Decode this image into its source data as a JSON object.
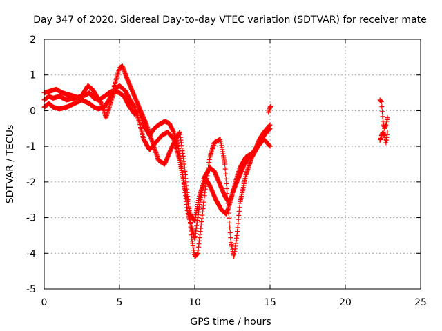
{
  "chart_data": {
    "type": "scatter",
    "title": "Day 347 of 2020, Sidereal Day-to-day VTEC variation (SDTVAR) for receiver mate",
    "xlabel": "GPS time / hours",
    "ylabel": "SDTVAR / TECUs",
    "xlim": [
      0,
      25
    ],
    "ylim": [
      -5,
      2
    ],
    "xticks": [
      0,
      5,
      10,
      15,
      20,
      25
    ],
    "yticks": [
      -5,
      -4,
      -3,
      -2,
      -1,
      0,
      1,
      2
    ],
    "grid": true,
    "marker": "+",
    "series": [
      {
        "name": "SDTVAR",
        "color": "#ff0000",
        "segments": [
          {
            "x": [
              0.0,
              0.3,
              0.6,
              1.0,
              1.5,
              2.0,
              2.5,
              2.8,
              3.0,
              3.3,
              3.6,
              4.0,
              4.3,
              4.6,
              5.0,
              5.3,
              5.6,
              6.0,
              6.3,
              6.6,
              7.0,
              7.3,
              7.6,
              8.0,
              8.3,
              8.6,
              8.9,
              9.2,
              9.5,
              9.8,
              10.0,
              10.3,
              10.6,
              11.0,
              11.3,
              11.6,
              12.0,
              12.3,
              12.6,
              13.0,
              13.3,
              13.6,
              14.0,
              14.3,
              14.6,
              15.0
            ],
            "y": [
              0.3,
              0.4,
              0.35,
              0.4,
              0.3,
              0.35,
              0.4,
              0.45,
              0.5,
              0.35,
              0.3,
              0.4,
              0.5,
              0.55,
              0.5,
              0.4,
              0.15,
              -0.1,
              0.0,
              -0.4,
              -0.7,
              -0.5,
              -0.4,
              -0.3,
              -0.35,
              -0.6,
              -1.0,
              -1.8,
              -2.8,
              -3.3,
              -3.6,
              -2.7,
              -1.9,
              -1.6,
              -1.7,
              -2.0,
              -2.4,
              -2.6,
              -2.2,
              -1.8,
              -1.5,
              -1.3,
              -1.1,
              -0.8,
              -0.6,
              -0.4
            ]
          },
          {
            "x": [
              0.0,
              0.3,
              0.6,
              1.0,
              1.5,
              2.0,
              2.5,
              3.0,
              3.3,
              3.6,
              4.0,
              4.3,
              4.6,
              5.0,
              5.2,
              5.5,
              5.8,
              6.1,
              6.4,
              6.8,
              7.2,
              7.6,
              8.0,
              8.5,
              9.0,
              9.3,
              9.6,
              9.8,
              10.0,
              10.2,
              10.4,
              10.7,
              11.0,
              11.3,
              11.7,
              12.0,
              12.2,
              12.4,
              12.6,
              12.8,
              13.0,
              13.4,
              13.8,
              14.2,
              14.6,
              15.0
            ],
            "y": [
              0.1,
              0.2,
              0.1,
              0.05,
              0.1,
              0.2,
              0.3,
              0.2,
              0.1,
              0.05,
              0.1,
              0.3,
              0.6,
              1.2,
              1.25,
              0.9,
              0.6,
              0.3,
              0.0,
              -0.4,
              -0.9,
              -1.4,
              -1.5,
              -1.0,
              -0.6,
              -1.5,
              -2.7,
              -3.6,
              -4.1,
              -4.0,
              -3.3,
              -2.2,
              -1.3,
              -0.9,
              -0.8,
              -1.5,
              -2.6,
              -3.7,
              -4.1,
              -3.5,
              -2.6,
              -1.8,
              -1.3,
              -1.0,
              -0.8,
              -1.0
            ]
          },
          {
            "x": [
              0.0,
              0.4,
              0.8,
              1.2,
              1.6,
              2.0,
              2.4,
              2.9,
              3.2,
              3.5,
              3.8,
              4.1,
              4.4,
              4.7,
              5.0,
              5.4,
              5.7,
              6.0,
              6.3,
              6.6,
              7.0,
              7.4,
              7.8,
              8.2,
              8.6,
              9.0,
              9.4,
              9.7,
              10.0,
              10.3,
              10.7,
              11.0,
              11.4,
              11.8,
              12.1,
              12.4,
              12.7,
              13.0,
              13.4,
              13.8,
              14.2,
              14.6,
              15.0
            ],
            "y": [
              0.5,
              0.55,
              0.6,
              0.5,
              0.45,
              0.4,
              0.35,
              0.7,
              0.6,
              0.4,
              0.2,
              -0.2,
              0.2,
              0.6,
              0.7,
              0.55,
              0.3,
              0.1,
              -0.3,
              -0.8,
              -1.1,
              -0.9,
              -0.7,
              -0.6,
              -0.8,
              -1.4,
              -2.3,
              -2.9,
              -3.1,
              -2.4,
              -1.9,
              -2.1,
              -2.5,
              -2.8,
              -2.9,
              -2.5,
              -2.0,
              -1.6,
              -1.3,
              -1.2,
              -1.0,
              -0.7,
              -0.5
            ]
          },
          {
            "x": [
              14.9,
              15.0,
              15.05
            ],
            "y": [
              -0.05,
              0.1,
              0.12
            ]
          },
          {
            "x": [
              22.3,
              22.4,
              22.5,
              22.6,
              22.7,
              22.8
            ],
            "y": [
              0.3,
              0.25,
              -0.3,
              -0.5,
              -0.4,
              -0.2
            ]
          },
          {
            "x": [
              22.3,
              22.4,
              22.5,
              22.6,
              22.7,
              22.8
            ],
            "y": [
              -0.85,
              -0.7,
              -0.6,
              -0.7,
              -0.9,
              -0.6
            ]
          }
        ]
      }
    ]
  }
}
